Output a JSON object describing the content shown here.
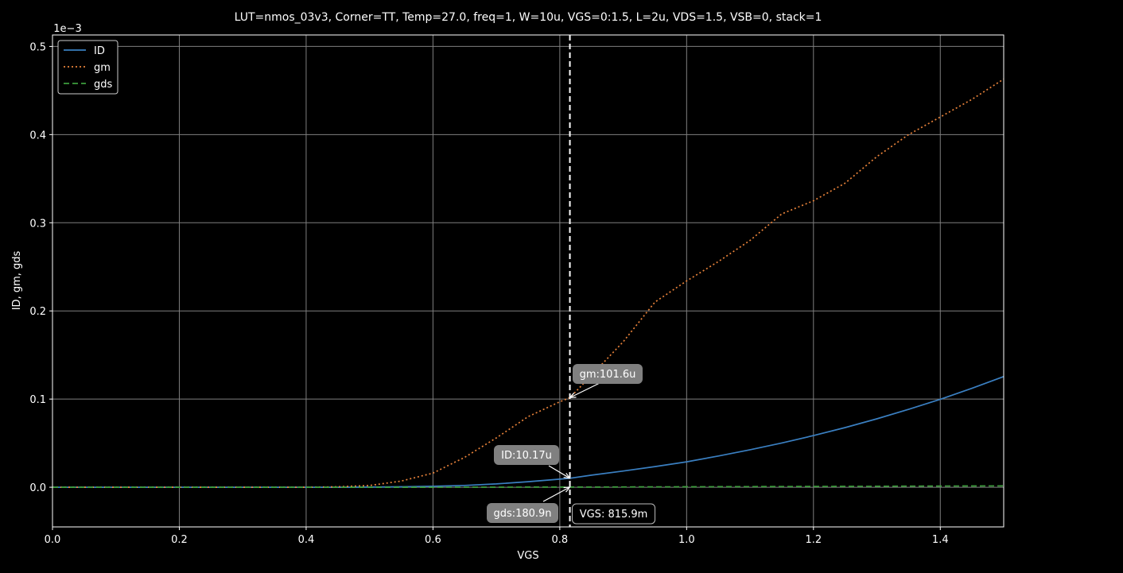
{
  "chart_data": {
    "type": "line",
    "title": "LUT=nmos_03v3, Corner=TT, Temp=27.0, freq=1, W=10u, VGS=0:1.5, L=2u, VDS=1.5, VSB=0, stack=1",
    "xlabel": "VGS",
    "ylabel": "ID, gm, gds",
    "y_offset_label": "1e−3",
    "xlim": [
      0,
      1.5
    ],
    "ylim": [
      -0.045,
      0.513
    ],
    "y_scale": 0.001,
    "grid": true,
    "legend_position": "upper-left",
    "x_ticks": [
      0.0,
      0.2,
      0.4,
      0.6,
      0.8,
      1.0,
      1.2,
      1.4
    ],
    "x_tick_labels": [
      "0.0",
      "0.2",
      "0.4",
      "0.6",
      "0.8",
      "1.0",
      "1.2",
      "1.4"
    ],
    "y_ticks": [
      0.0,
      0.1,
      0.2,
      0.3,
      0.4,
      0.5
    ],
    "y_tick_labels": [
      "0.0",
      "0.1",
      "0.2",
      "0.3",
      "0.4",
      "0.5"
    ],
    "x": [
      0.0,
      0.1,
      0.2,
      0.3,
      0.4,
      0.45,
      0.5,
      0.55,
      0.6,
      0.65,
      0.7,
      0.75,
      0.8,
      0.816,
      0.85,
      0.9,
      0.95,
      1.0,
      1.05,
      1.1,
      1.15,
      1.2,
      1.25,
      1.3,
      1.35,
      1.4,
      1.45,
      1.5
    ],
    "series": [
      {
        "name": "ID",
        "color": "#3a7fc1",
        "style": "solid",
        "values": [
          0.0,
          0.0,
          0.0,
          0.0,
          0.0,
          0.0,
          0.0002,
          0.0005,
          0.0011,
          0.0021,
          0.0038,
          0.0063,
          0.0092,
          0.01017,
          0.0137,
          0.0184,
          0.0234,
          0.0288,
          0.0354,
          0.0425,
          0.0502,
          0.0586,
          0.0677,
          0.0776,
          0.0883,
          0.0998,
          0.1122,
          0.1256
        ]
      },
      {
        "name": "gm",
        "color": "#e8823a",
        "style": "dotted",
        "values": [
          0.0,
          0.0,
          0.0,
          0.0,
          0.0,
          0.0005,
          0.002,
          0.007,
          0.016,
          0.034,
          0.056,
          0.08,
          0.097,
          0.1016,
          0.127,
          0.165,
          0.21,
          0.234,
          0.256,
          0.28,
          0.31,
          0.325,
          0.345,
          0.375,
          0.4,
          0.42,
          0.44,
          0.463
        ]
      },
      {
        "name": "gds",
        "color": "#3d9f3d",
        "style": "dashed",
        "values": [
          0.0,
          0.0,
          0.0,
          0.0,
          0.0,
          0.0,
          0.0,
          0.0,
          0.0,
          0.0001,
          0.0001,
          0.0002,
          0.0002,
          0.0002,
          0.0002,
          0.0003,
          0.0004,
          0.0005,
          0.0006,
          0.0007,
          0.0008,
          0.0009,
          0.001,
          0.0011,
          0.0012,
          0.0013,
          0.0014,
          0.0015
        ]
      }
    ],
    "cursor": {
      "x": 0.8159,
      "label": "VGS: 815.9m"
    },
    "annotations": [
      {
        "series": "gm",
        "x": 0.8159,
        "y": 0.1016,
        "label": "gm:101.6u"
      },
      {
        "series": "ID",
        "x": 0.8159,
        "y": 0.01017,
        "label": "ID:10.17u"
      },
      {
        "series": "gds",
        "x": 0.8159,
        "y": 0.0002,
        "label": "gds:180.9n"
      }
    ]
  }
}
